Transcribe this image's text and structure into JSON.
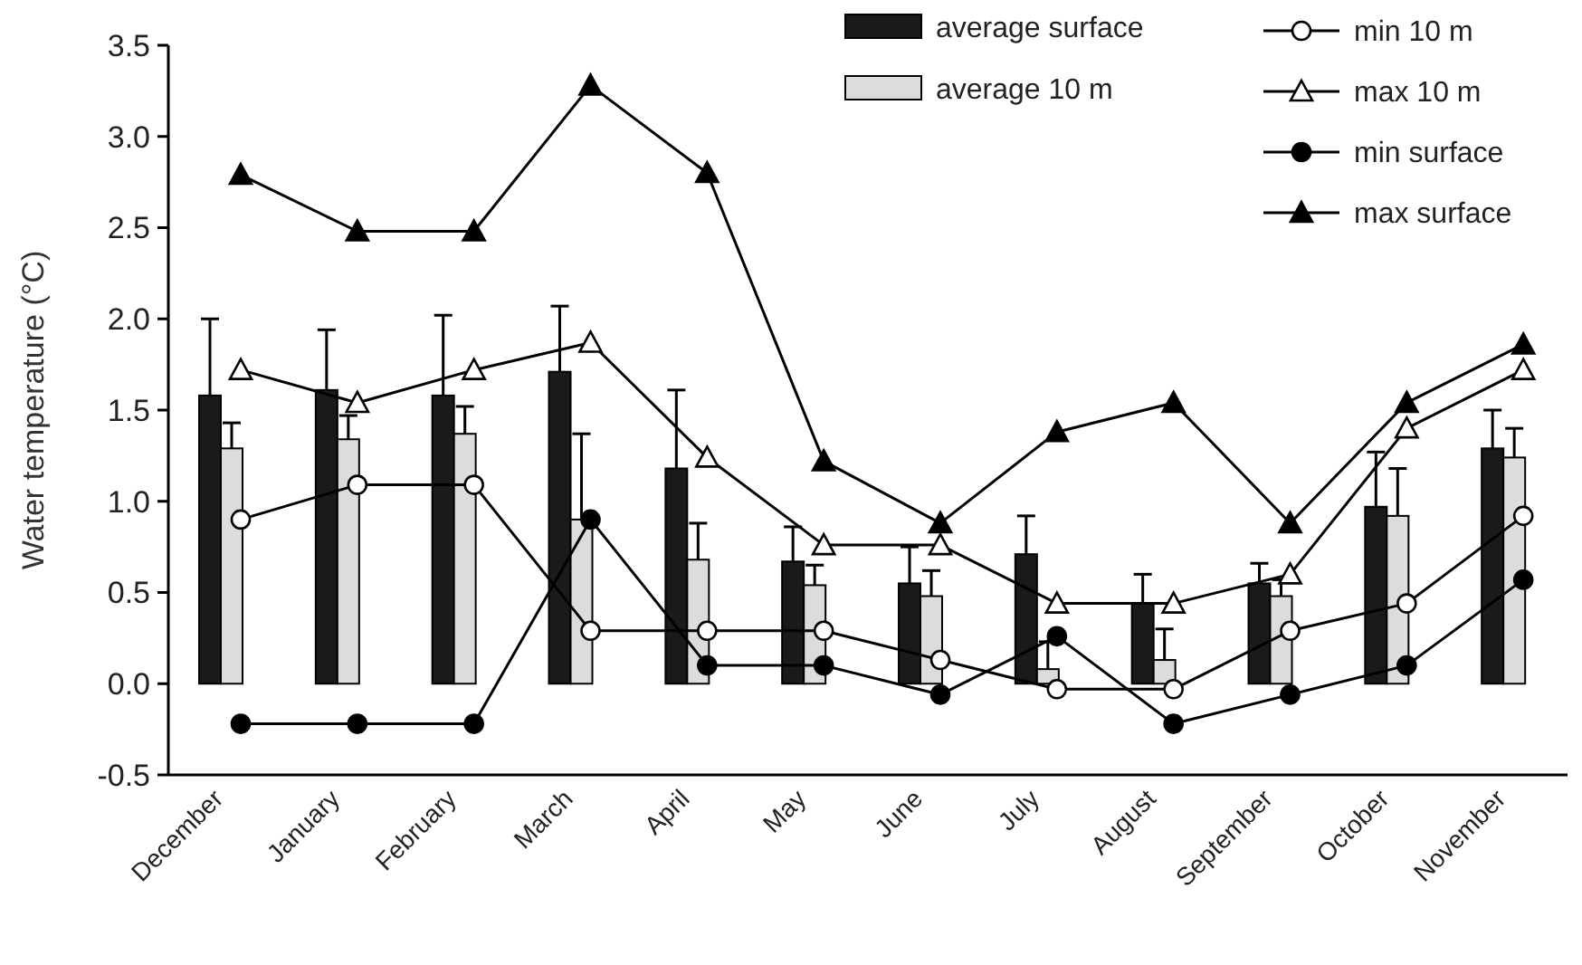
{
  "chart_data": {
    "type": "bar",
    "ylabel": "Water temperature (°C)",
    "categories": [
      "December",
      "January",
      "February",
      "March",
      "April",
      "May",
      "June",
      "July",
      "August",
      "September",
      "October",
      "November"
    ],
    "ylim": [
      -0.5,
      3.5
    ],
    "yticks": [
      -0.5,
      {
        "value": 0,
        "label": "0.0"
      },
      0.5,
      {
        "value": 1,
        "label": "1.0"
      },
      1.5,
      {
        "value": 2,
        "label": "2.0"
      },
      2.5,
      {
        "value": 3,
        "label": "3.0"
      },
      3.5
    ],
    "legend": "top right",
    "grid": false,
    "series": [
      {
        "name": "average surface",
        "color": "#1a1a1a",
        "values": [
          1.58,
          1.61,
          1.58,
          1.71,
          1.18,
          0.67,
          0.55,
          0.71,
          0.44,
          0.55,
          0.97,
          1.29
        ],
        "errors": [
          [
            1.58,
            2.0
          ],
          [
            1.61,
            1.94
          ],
          [
            1.58,
            2.02
          ],
          [
            1.71,
            2.07
          ],
          [
            1.18,
            1.61
          ],
          [
            0.67,
            0.86
          ],
          [
            0.55,
            0.75
          ],
          [
            0.71,
            0.92
          ],
          [
            0.44,
            0.6
          ],
          [
            0.55,
            0.66
          ],
          [
            0.97,
            1.27
          ],
          [
            1.29,
            1.5
          ]
        ]
      },
      {
        "name": "average 10 m",
        "color": "#dcdcdc",
        "values": [
          1.29,
          1.34,
          1.37,
          0.9,
          0.68,
          0.54,
          0.48,
          0.08,
          0.13,
          0.48,
          0.92,
          1.24
        ],
        "errors": [
          [
            1.29,
            1.43
          ],
          [
            1.34,
            1.47
          ],
          [
            1.37,
            1.52
          ],
          [
            0.9,
            1.37
          ],
          [
            0.68,
            0.88
          ],
          [
            0.54,
            0.65
          ],
          [
            0.48,
            0.62
          ],
          [
            0.08,
            0.23
          ],
          [
            0.13,
            0.3
          ],
          [
            0.48,
            0.57
          ],
          [
            0.92,
            1.18
          ],
          [
            1.24,
            1.4
          ]
        ]
      },
      {
        "name": "min 10 m",
        "type": "line",
        "color": "#ffffff",
        "marker": "circle",
        "values": [
          0.9,
          1.09,
          1.09,
          0.29,
          0.29,
          0.29,
          0.13,
          -0.03,
          -0.03,
          0.29,
          0.44,
          0.92
        ]
      },
      {
        "name": "max 10 m",
        "type": "line",
        "color": "#ffffff",
        "marker": "triangle",
        "values": [
          1.72,
          1.54,
          1.72,
          1.87,
          1.24,
          0.76,
          0.76,
          0.44,
          0.44,
          0.6,
          1.4,
          1.72
        ]
      },
      {
        "name": "min surface",
        "type": "line",
        "color": "#000000",
        "marker": "circle",
        "values": [
          -0.22,
          -0.22,
          -0.22,
          0.9,
          0.1,
          0.1,
          -0.06,
          0.26,
          -0.22,
          -0.06,
          0.1,
          0.57
        ]
      },
      {
        "name": "max surface",
        "type": "line",
        "color": "#000000",
        "marker": "triangle",
        "values": [
          2.79,
          2.48,
          2.48,
          3.28,
          2.8,
          1.22,
          0.88,
          1.38,
          1.54,
          0.88,
          1.54,
          1.86
        ]
      }
    ]
  }
}
